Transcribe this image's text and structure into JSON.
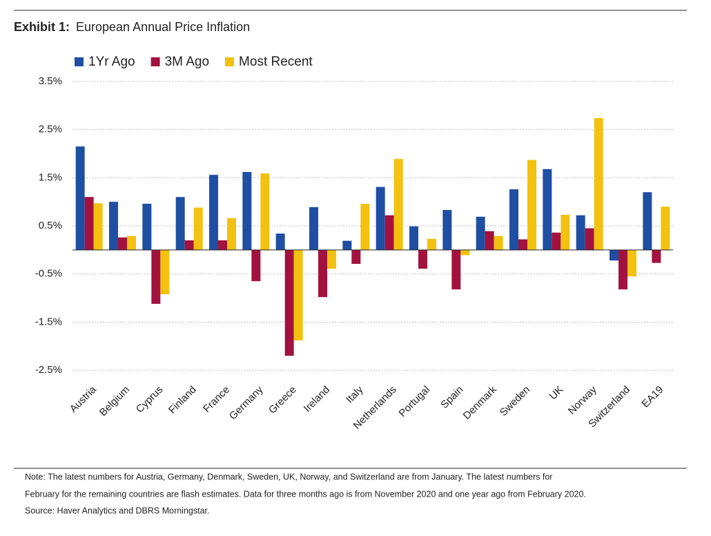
{
  "exhibit": "Exhibit 1:",
  "chart_data": {
    "type": "bar",
    "title": "European Annual Price Inflation",
    "categories": [
      "Austria",
      "Belgium",
      "Cyprus",
      "Finland",
      "France",
      "Germany",
      "Greece",
      "Ireland",
      "Italy",
      "Netherlands",
      "Portugal",
      "Spain",
      "Denmark",
      "Sweden",
      "UK",
      "Norway",
      "Switzerland",
      "EA19"
    ],
    "series": [
      {
        "name": "1Yr Ago",
        "color": "#1f4fa3",
        "values": [
          2.15,
          1.0,
          0.96,
          1.1,
          1.56,
          1.62,
          0.34,
          0.89,
          0.19,
          1.31,
          0.49,
          0.83,
          0.69,
          1.26,
          1.68,
          0.72,
          -0.22,
          1.2
        ]
      },
      {
        "name": "3M Ago",
        "color": "#a3123f",
        "values": [
          1.1,
          0.26,
          -1.12,
          0.2,
          0.2,
          -0.65,
          -2.2,
          -0.98,
          -0.29,
          0.72,
          -0.39,
          -0.82,
          0.39,
          0.22,
          0.36,
          0.45,
          -0.82,
          -0.27
        ]
      },
      {
        "name": "Most Recent",
        "color": "#f3c10f",
        "values": [
          0.97,
          0.29,
          -0.92,
          0.88,
          0.66,
          1.59,
          -1.88,
          -0.39,
          0.96,
          1.89,
          0.23,
          -0.11,
          0.29,
          1.87,
          0.73,
          2.74,
          -0.55,
          0.9
        ]
      }
    ],
    "ylim": [
      -2.5,
      3.5
    ],
    "yticks": [
      {
        "value": 3.5,
        "label": "3.5%"
      },
      {
        "value": 2.5,
        "label": "2.5%"
      },
      {
        "value": 1.5,
        "label": "1.5%"
      },
      {
        "value": 0.5,
        "label": "0.5%"
      },
      {
        "value": -0.5,
        "label": "-0.5%"
      },
      {
        "value": -1.5,
        "label": "-1.5%"
      },
      {
        "value": -2.5,
        "label": "-2.5%"
      }
    ],
    "grid": true,
    "legend": "top-left"
  },
  "note": [
    "Note: The latest numbers for Austria, Germany, Denmark, Sweden, UK, Norway, and Switzerland are from January. The latest numbers for",
    "February for the remaining countries are flash estimates. Data for three months ago is from November 2020 and one year ago from February 2020.",
    "Source: Haver Analytics and DBRS Morningstar."
  ]
}
